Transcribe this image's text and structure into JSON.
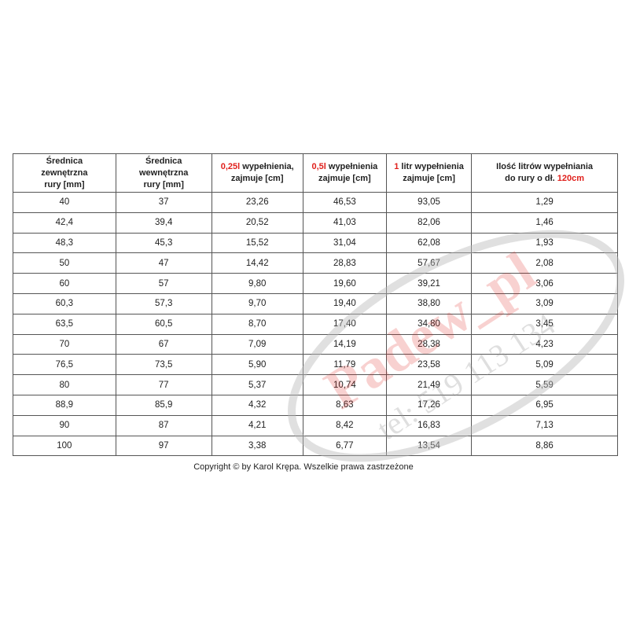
{
  "watermark": {
    "text": "Padew_pl",
    "phone": "tel: 519 113 134",
    "color": "#e0201c"
  },
  "header": [
    {
      "pre": "",
      "red": "",
      "post": "Średnica\nzewnętrzna\nrury [mm]"
    },
    {
      "pre": "",
      "red": "",
      "post": "Średnica\nwewnętrzna\nrury [mm]"
    },
    {
      "pre": "",
      "red": "0,25l",
      "post": " wypełnienia,\nzajmuje [cm]"
    },
    {
      "pre": "",
      "red": "0,5l",
      "post": " wypełnienia\nzajmuje [cm]"
    },
    {
      "pre": "",
      "red": "1",
      "post": " litr wypełnienia\nzajmuje [cm]"
    },
    {
      "pre": "Ilość litrów wypełniania\ndo rury o dł. ",
      "red": "120cm",
      "post": ""
    }
  ],
  "rows": [
    [
      "40",
      "37",
      "23,26",
      "46,53",
      "93,05",
      "1,29"
    ],
    [
      "42,4",
      "39,4",
      "20,52",
      "41,03",
      "82,06",
      "1,46"
    ],
    [
      "48,3",
      "45,3",
      "15,52",
      "31,04",
      "62,08",
      "1,93"
    ],
    [
      "50",
      "47",
      "14,42",
      "28,83",
      "57,67",
      "2,08"
    ],
    [
      "60",
      "57",
      "9,80",
      "19,60",
      "39,21",
      "3,06"
    ],
    [
      "60,3",
      "57,3",
      "9,70",
      "19,40",
      "38,80",
      "3,09"
    ],
    [
      "63,5",
      "60,5",
      "8,70",
      "17,40",
      "34,80",
      "3,45"
    ],
    [
      "70",
      "67",
      "7,09",
      "14,19",
      "28,38",
      "4,23"
    ],
    [
      "76,5",
      "73,5",
      "5,90",
      "11,79",
      "23,58",
      "5,09"
    ],
    [
      "80",
      "77",
      "5,37",
      "10,74",
      "21,49",
      "5,59"
    ],
    [
      "88,9",
      "85,9",
      "4,32",
      "8,63",
      "17,26",
      "6,95"
    ],
    [
      "90",
      "87",
      "4,21",
      "8,42",
      "16,83",
      "7,13"
    ],
    [
      "100",
      "97",
      "3,38",
      "6,77",
      "13,54",
      "8,86"
    ]
  ],
  "copyright": "Copyright © by Karol Krępa. Wszelkie prawa zastrzeżone"
}
